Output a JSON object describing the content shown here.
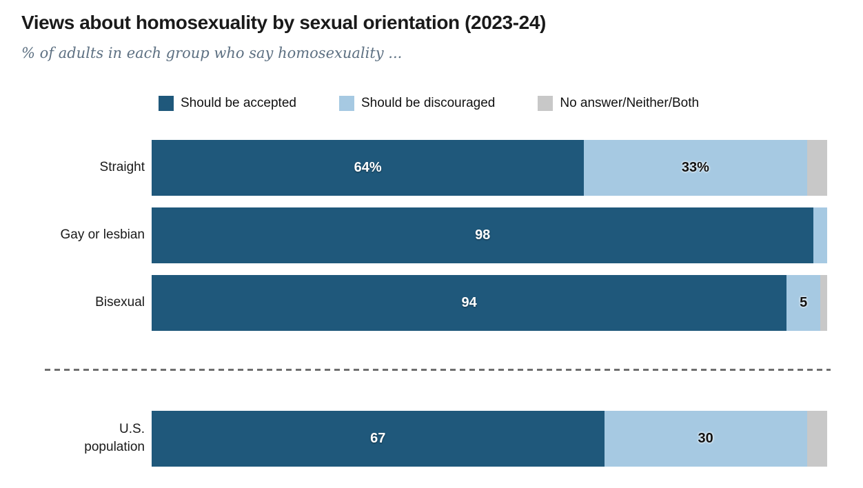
{
  "title": "Views about homosexuality by sexual orientation (2023-24)",
  "subtitle": "% of adults in each group who say homosexuality ...",
  "colors": {
    "accepted": "#1F587B",
    "discouraged": "#A6C9E2",
    "no_answer": "#C8C8C8",
    "title_text": "#1a1a1a",
    "subtitle_text": "#5d7082",
    "divider": "#6e6e6e"
  },
  "legend": [
    {
      "key": "accepted",
      "label": "Should be accepted",
      "color": "#1F587B"
    },
    {
      "key": "discouraged",
      "label": "Should be discouraged",
      "color": "#A6C9E2"
    },
    {
      "key": "no-answer",
      "label": "No answer/Neither/Both",
      "color": "#C8C8C8"
    }
  ],
  "chart_data": {
    "type": "bar",
    "orientation": "horizontal",
    "stacked": true,
    "title": "Views about homosexuality by sexual orientation (2023-24)",
    "subtitle": "% of adults in each group who say homosexuality ...",
    "xlim": [
      0,
      100
    ],
    "grid": false,
    "legend_position": "top",
    "categories": [
      "Straight",
      "Gay or lesbian",
      "Bisexual",
      "U.S. population"
    ],
    "category_display": [
      "Straight",
      "Gay or lesbian",
      "Bisexual",
      "U.S.\npopulation"
    ],
    "series": [
      {
        "key": "accepted",
        "name": "Should be accepted",
        "color": "#1F587B",
        "values": [
          64,
          98,
          94,
          67
        ]
      },
      {
        "key": "discouraged",
        "name": "Should be discouraged",
        "color": "#A6C9E2",
        "values": [
          33,
          2,
          5,
          30
        ]
      },
      {
        "key": "no-answer",
        "name": "No answer/Neither/Both",
        "color": "#C8C8C8",
        "values": [
          3,
          0,
          1,
          3
        ]
      }
    ],
    "value_labels": [
      [
        "64%",
        "33%",
        ""
      ],
      [
        "98",
        "",
        ""
      ],
      [
        "94",
        "5",
        ""
      ],
      [
        "67",
        "30",
        ""
      ]
    ],
    "divider_before_index": 3
  }
}
